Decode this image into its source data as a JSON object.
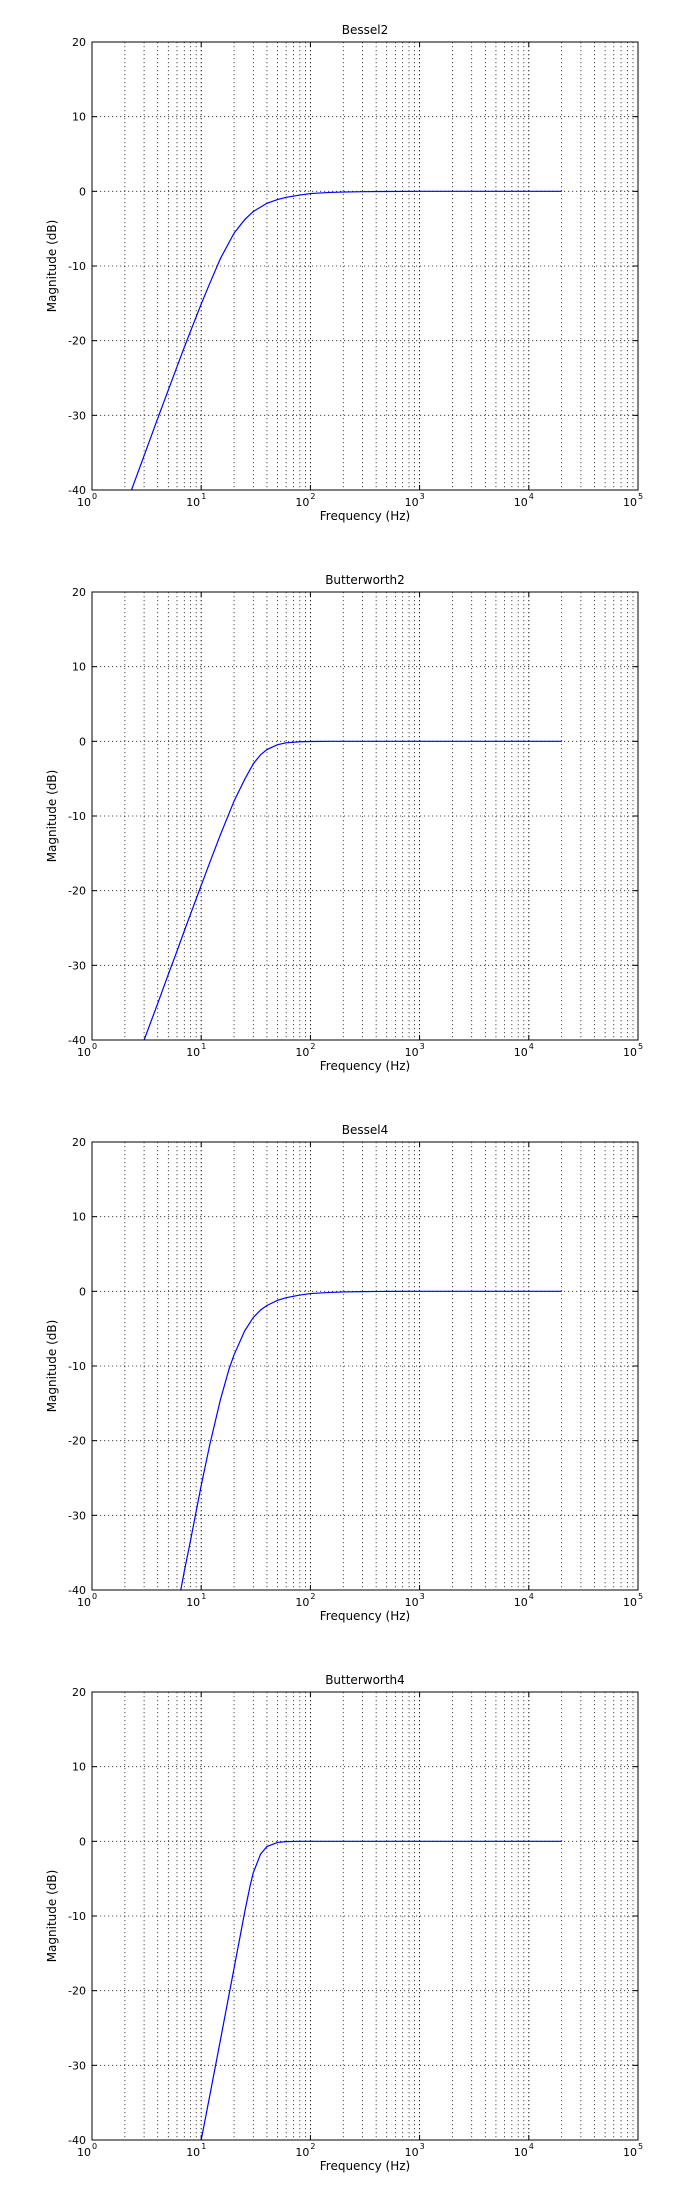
{
  "colors": {
    "line": "#0000ff",
    "axes": "#000000",
    "background": "#ffffff"
  },
  "chart_data": [
    {
      "type": "line",
      "title": "Bessel2",
      "xlabel": "Frequency (Hz)",
      "ylabel": "Magnitude (dB)",
      "xscale": "log",
      "xlim": [
        1,
        100000
      ],
      "ylim": [
        -40,
        20
      ],
      "yticks": [
        "-40",
        "-30",
        "-20",
        "-10",
        "0",
        "10",
        "20"
      ],
      "xticks": [
        {
          "base": "10",
          "exp": "0"
        },
        {
          "base": "10",
          "exp": "1"
        },
        {
          "base": "10",
          "exp": "2"
        },
        {
          "base": "10",
          "exp": "3"
        },
        {
          "base": "10",
          "exp": "4"
        },
        {
          "base": "10",
          "exp": "5"
        }
      ],
      "grid": true,
      "series": [
        {
          "x": [
            2.3,
            3,
            4,
            5,
            6,
            7,
            8,
            10,
            12,
            15,
            20,
            25,
            30,
            40,
            50,
            60,
            80,
            100,
            150,
            200,
            300,
            500,
            1000,
            5000,
            10000,
            20000
          ],
          "y": [
            -40,
            -35.4,
            -30.4,
            -26.6,
            -23.5,
            -20.9,
            -18.7,
            -15.1,
            -12.3,
            -9.0,
            -5.6,
            -3.8,
            -2.7,
            -1.6,
            -1.1,
            -0.8,
            -0.5,
            -0.3,
            -0.15,
            -0.1,
            -0.05,
            -0.02,
            0,
            0,
            0,
            0
          ]
        }
      ]
    },
    {
      "type": "line",
      "title": "Butterworth2",
      "xlabel": "Frequency (Hz)",
      "ylabel": "Magnitude (dB)",
      "xscale": "log",
      "xlim": [
        1,
        100000
      ],
      "ylim": [
        -40,
        20
      ],
      "yticks": [
        "-40",
        "-30",
        "-20",
        "-10",
        "0",
        "10",
        "20"
      ],
      "xticks": [
        {
          "base": "10",
          "exp": "0"
        },
        {
          "base": "10",
          "exp": "1"
        },
        {
          "base": "10",
          "exp": "2"
        },
        {
          "base": "10",
          "exp": "3"
        },
        {
          "base": "10",
          "exp": "4"
        },
        {
          "base": "10",
          "exp": "5"
        }
      ],
      "grid": true,
      "series": [
        {
          "x": [
            3,
            4,
            5,
            6,
            7,
            8,
            10,
            12,
            15,
            20,
            25,
            30,
            35,
            40,
            50,
            60,
            80,
            100,
            150,
            200,
            300,
            500,
            1000,
            5000,
            10000,
            20000
          ],
          "y": [
            -40,
            -35.1,
            -31.2,
            -28.1,
            -25.4,
            -23.1,
            -19.3,
            -16.2,
            -12.5,
            -8.0,
            -5.1,
            -3.0,
            -1.8,
            -1.1,
            -0.45,
            -0.2,
            -0.06,
            -0.02,
            0,
            0,
            0,
            0,
            0,
            0,
            0,
            0
          ]
        }
      ]
    },
    {
      "type": "line",
      "title": "Bessel4",
      "xlabel": "Frequency (Hz)",
      "ylabel": "Magnitude (dB)",
      "xscale": "log",
      "xlim": [
        1,
        100000
      ],
      "ylim": [
        -40,
        20
      ],
      "yticks": [
        "-40",
        "-30",
        "-20",
        "-10",
        "0",
        "10",
        "20"
      ],
      "xticks": [
        {
          "base": "10",
          "exp": "0"
        },
        {
          "base": "10",
          "exp": "1"
        },
        {
          "base": "10",
          "exp": "2"
        },
        {
          "base": "10",
          "exp": "3"
        },
        {
          "base": "10",
          "exp": "4"
        },
        {
          "base": "10",
          "exp": "5"
        }
      ],
      "grid": true,
      "series": [
        {
          "x": [
            6.5,
            7,
            8,
            10,
            12,
            15,
            18,
            20,
            25,
            30,
            35,
            40,
            50,
            60,
            80,
            100,
            150,
            200,
            300,
            500,
            1000,
            5000,
            10000,
            20000
          ],
          "y": [
            -40,
            -37.5,
            -33.3,
            -26.0,
            -20.5,
            -14.5,
            -10.4,
            -8.5,
            -5.3,
            -3.5,
            -2.5,
            -1.9,
            -1.2,
            -0.85,
            -0.5,
            -0.3,
            -0.15,
            -0.08,
            -0.04,
            -0.01,
            0,
            0,
            0,
            0
          ]
        }
      ]
    },
    {
      "type": "line",
      "title": "Butterworth4",
      "xlabel": "Frequency (Hz)",
      "ylabel": "Magnitude (dB)",
      "xscale": "log",
      "xlim": [
        1,
        100000
      ],
      "ylim": [
        -40,
        20
      ],
      "yticks": [
        "-40",
        "-30",
        "-20",
        "-10",
        "0",
        "10",
        "20"
      ],
      "xticks": [
        {
          "base": "10",
          "exp": "0"
        },
        {
          "base": "10",
          "exp": "1"
        },
        {
          "base": "10",
          "exp": "2"
        },
        {
          "base": "10",
          "exp": "3"
        },
        {
          "base": "10",
          "exp": "4"
        },
        {
          "base": "10",
          "exp": "5"
        }
      ],
      "grid": true,
      "series": [
        {
          "x": [
            10,
            12,
            15,
            18,
            20,
            22,
            25,
            28,
            30,
            35,
            40,
            50,
            60,
            80,
            100,
            150,
            200,
            500,
            1000,
            5000,
            10000,
            20000
          ],
          "y": [
            -40,
            -34.0,
            -26.6,
            -20.5,
            -17.0,
            -13.8,
            -9.5,
            -6.0,
            -4.2,
            -1.7,
            -0.7,
            -0.15,
            -0.04,
            0,
            0,
            0,
            0,
            0,
            0,
            0,
            0,
            0
          ]
        }
      ]
    }
  ]
}
